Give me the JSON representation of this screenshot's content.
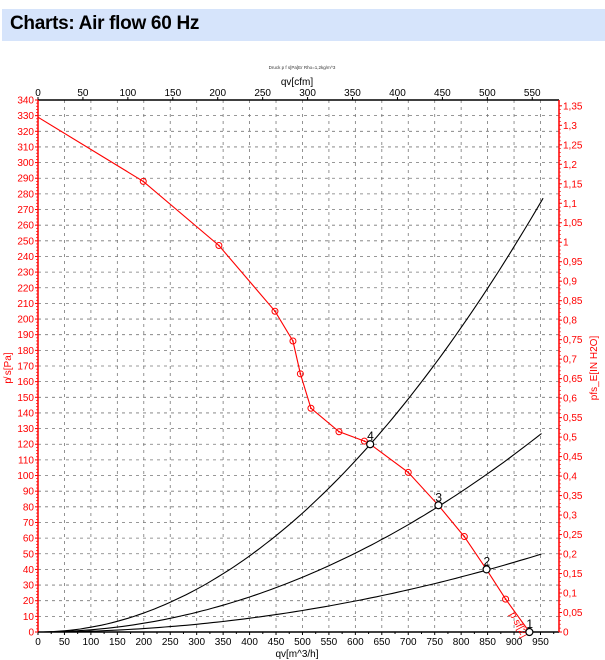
{
  "header": {
    "title": "Charts: Air flow 60 Hz"
  },
  "chart_data": {
    "type": "line",
    "subtitle": "Druck p f s[Pa]Er Rho=1,2kg/m^3",
    "xlabel": "qv[m^3/h]",
    "x2label": "qv[cfm]",
    "ylabel": "p̸ s[Pa]",
    "y2label": "pfs_E[IN H2O]",
    "xlim": [
      0,
      985
    ],
    "ylim": [
      0,
      340
    ],
    "x_ticks": [
      0,
      50,
      100,
      150,
      200,
      250,
      300,
      350,
      400,
      450,
      500,
      550,
      600,
      650,
      700,
      750,
      800,
      850,
      900,
      950
    ],
    "x2_ticks": [
      0,
      50,
      100,
      150,
      200,
      250,
      300,
      350,
      400,
      450,
      500,
      550
    ],
    "x2_factor_m3h_per_cfm": 1.699,
    "y_ticks": [
      0,
      10,
      20,
      30,
      40,
      50,
      60,
      70,
      80,
      90,
      100,
      110,
      120,
      130,
      140,
      150,
      160,
      170,
      180,
      190,
      200,
      210,
      220,
      230,
      240,
      250,
      260,
      270,
      280,
      290,
      300,
      310,
      320,
      330,
      340
    ],
    "y2_ticks": [
      "0",
      "0,05",
      "0,1",
      "0,15",
      "0,2",
      "0,25",
      "0,3",
      "0,35",
      "0,4",
      "0,45",
      "0,5",
      "0,55",
      "0,6",
      "0,65",
      "0,7",
      "0,75",
      "0,8",
      "0,85",
      "0,9",
      "0,95",
      "1",
      "1,05",
      "1,1",
      "1,15",
      "1,2",
      "1,25",
      "1,3",
      "1,35"
    ],
    "y2_factor_pa_per_unit": 249.1,
    "grid": true,
    "fan_curve": {
      "name": "p sf[2]",
      "color": "#ff0000",
      "x": [
        0,
        199,
        342,
        448,
        482,
        496,
        516,
        569,
        617,
        628,
        700,
        757,
        806,
        848,
        884,
        929
      ],
      "y": [
        329,
        288,
        247,
        205,
        186,
        165,
        143,
        128,
        122,
        120,
        102,
        81,
        61,
        40,
        21,
        0
      ],
      "markers": [
        1,
        2,
        3,
        4,
        5,
        6,
        7,
        8,
        10,
        12,
        14
      ]
    },
    "system_curves": [
      {
        "name": "4",
        "color": "#000000",
        "k": 0.000304,
        "xmax": 955,
        "op_point": [
          628,
          120
        ]
      },
      {
        "name": "3",
        "color": "#000000",
        "k": 0.00014,
        "xmax": 952,
        "op_point": [
          757,
          81
        ]
      },
      {
        "name": "2",
        "color": "#000000",
        "k": 5.5e-05,
        "xmax": 952,
        "op_point": [
          848,
          40
        ]
      },
      {
        "name": "1",
        "color": "#000000",
        "k": 0,
        "xmax": 929,
        "op_point": [
          929,
          0
        ]
      }
    ]
  }
}
